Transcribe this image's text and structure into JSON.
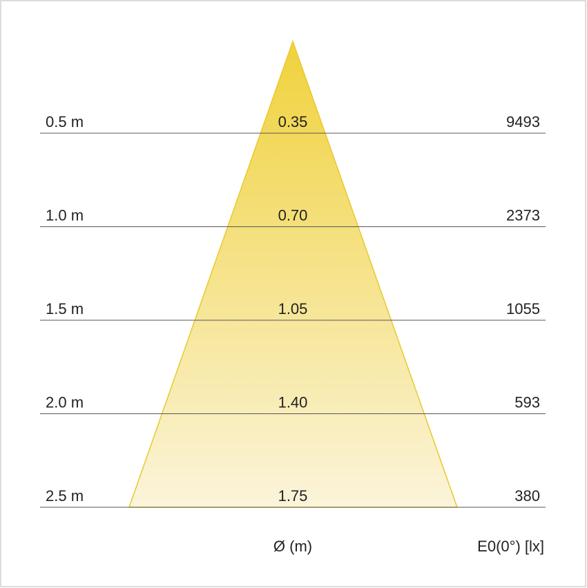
{
  "rows": [
    {
      "distance": "0.5 m",
      "diameter": "0.35",
      "illuminance": "9493"
    },
    {
      "distance": "1.0 m",
      "diameter": "0.70",
      "illuminance": "2373"
    },
    {
      "distance": "1.5 m",
      "diameter": "1.05",
      "illuminance": "1055"
    },
    {
      "distance": "2.0 m",
      "diameter": "1.40",
      "illuminance": "593"
    },
    {
      "distance": "2.5 m",
      "diameter": "1.75",
      "illuminance": "380"
    }
  ],
  "footer": {
    "diameter_label": "Ø (m)",
    "illuminance_label": "E0(0°) [lx]"
  }
}
